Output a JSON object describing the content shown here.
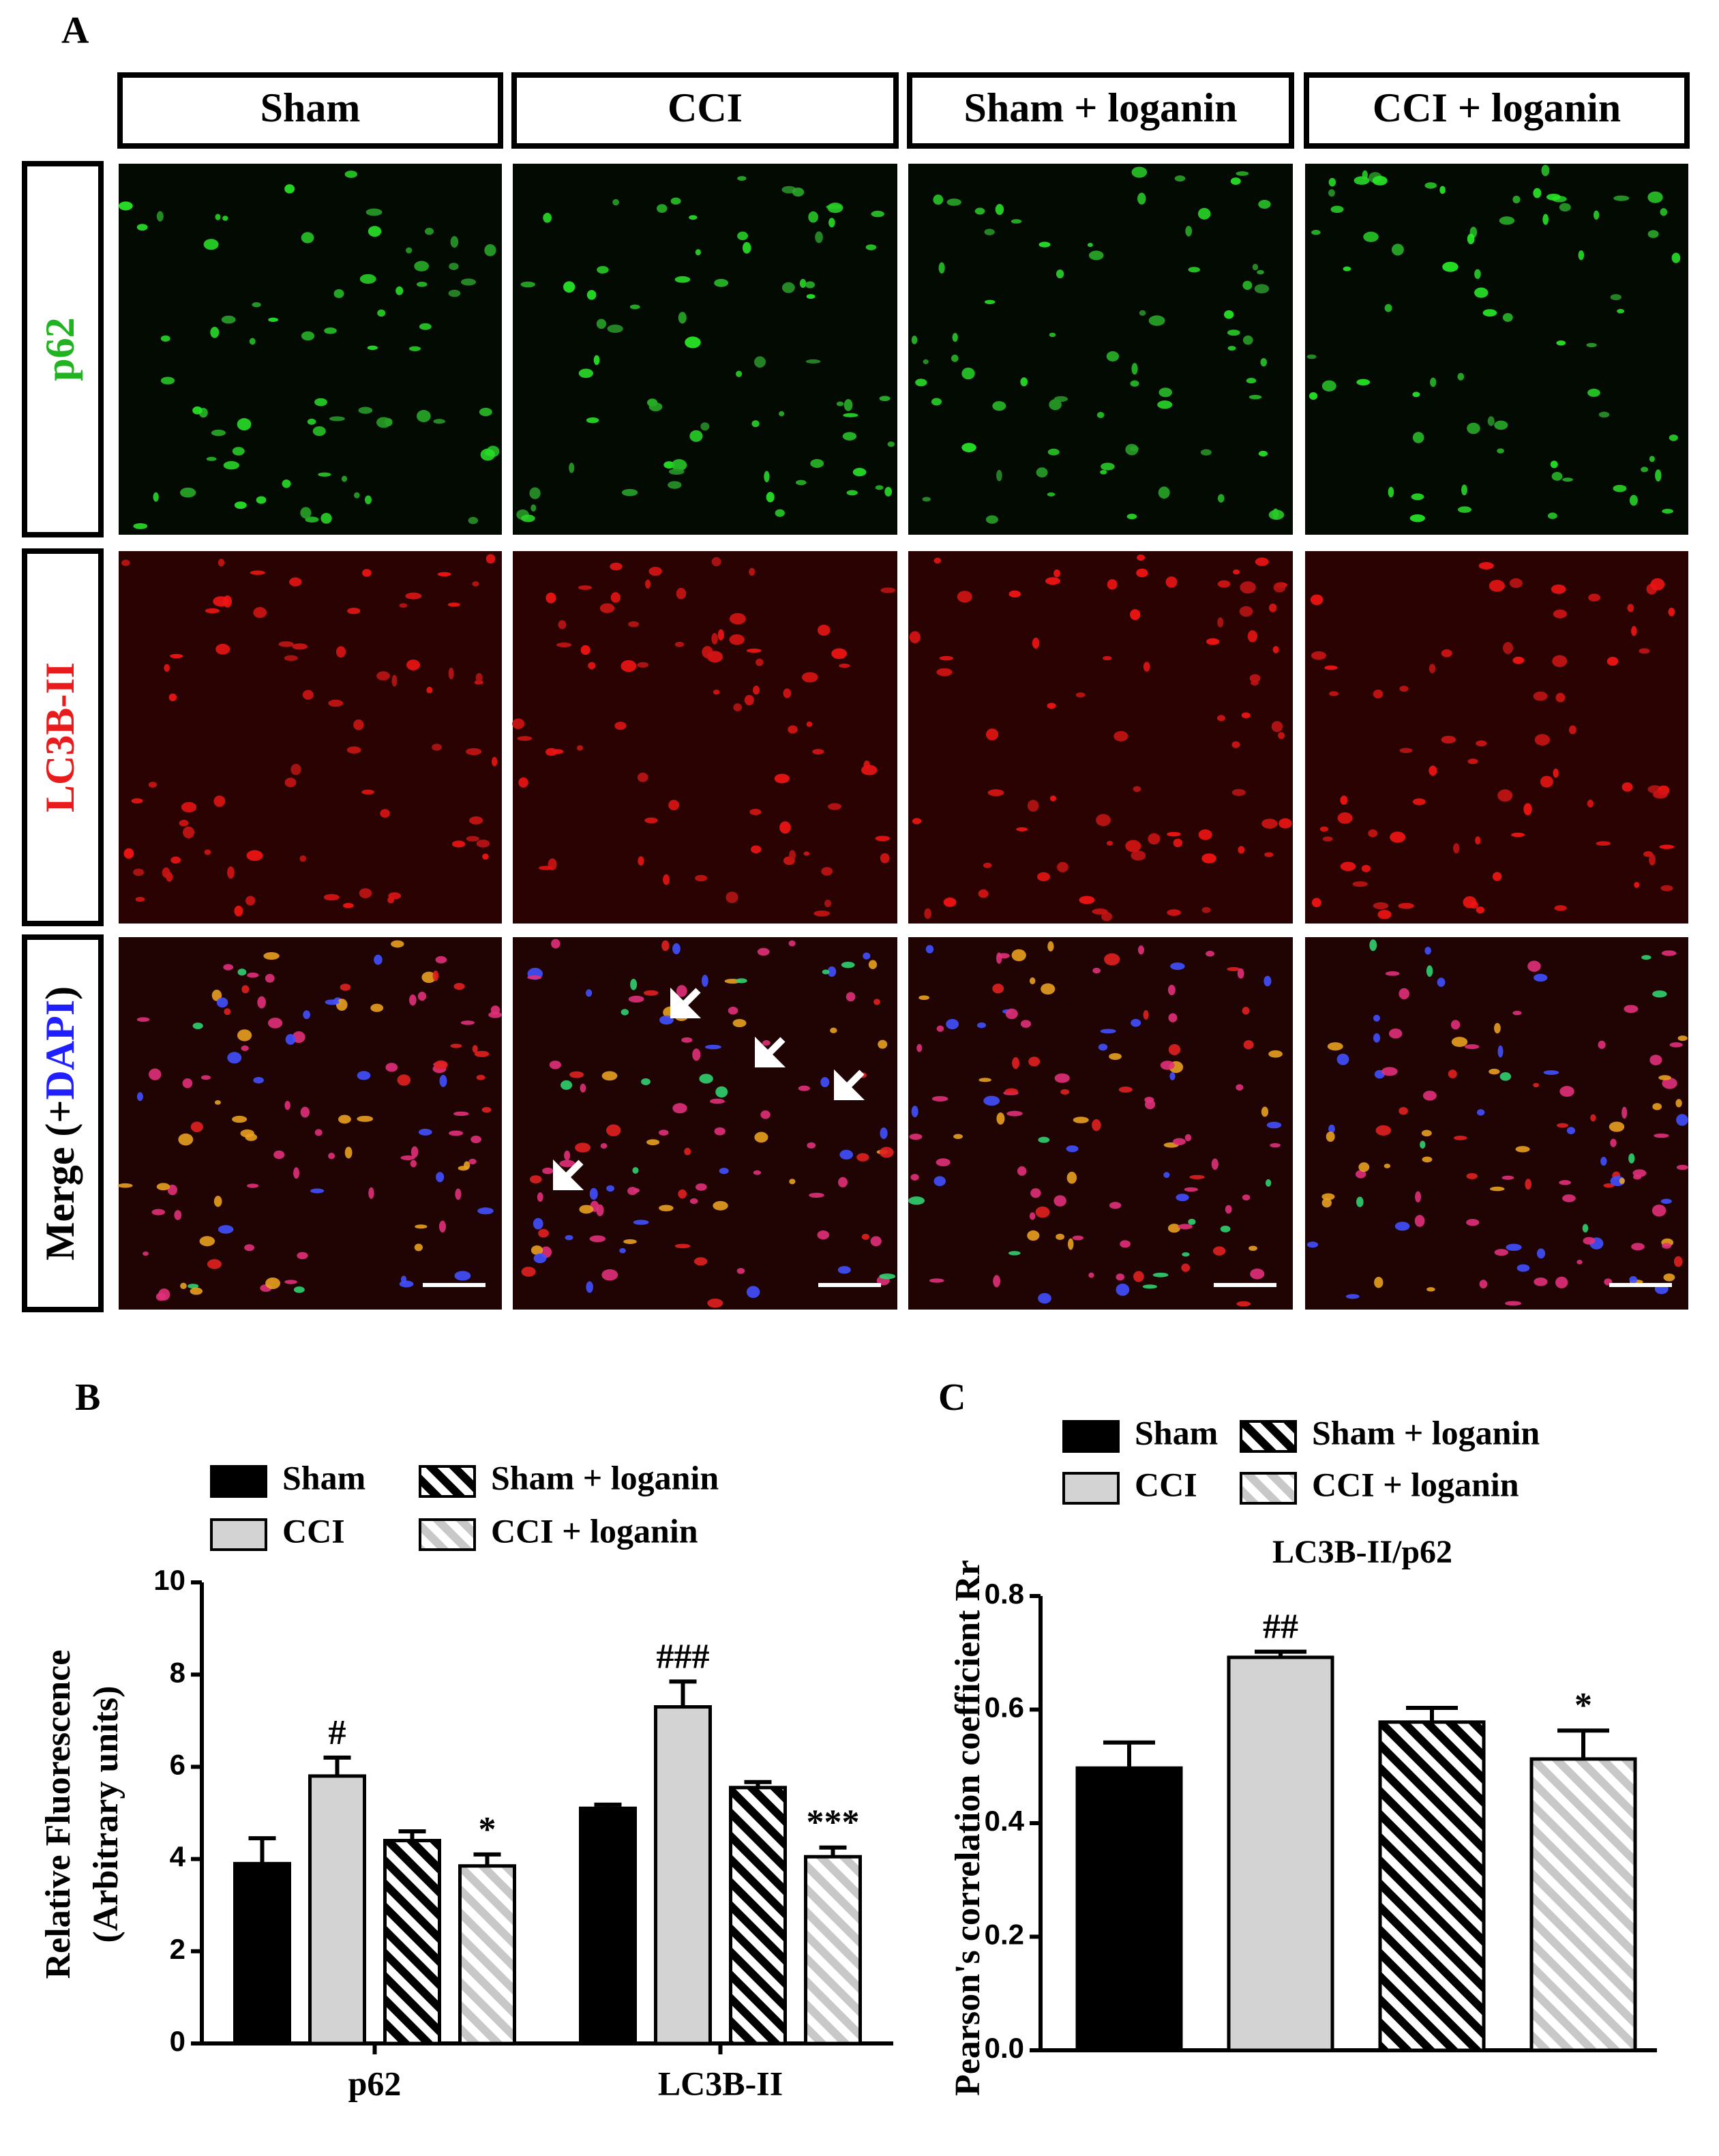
{
  "panel_a": {
    "label": "A",
    "columns": [
      "Sham",
      "CCI",
      "Sham + loganin",
      "CCI + loganin"
    ],
    "rows": [
      [
        "p62"
      ],
      [
        "LC3B-II"
      ],
      [
        "Merge (+",
        "DAPI",
        ")"
      ]
    ],
    "row_colors": [
      [
        "#22b322"
      ],
      [
        "#e81c1c"
      ],
      [
        "#000000",
        "#1f1fff",
        "#000000"
      ]
    ]
  },
  "chart_data": [
    {
      "type": "bar",
      "panel": "B",
      "ylabel": [
        "Relative Fluorescence",
        "(Arbitrary units)"
      ],
      "categories": [
        "p62",
        "LC3B-II"
      ],
      "series": [
        {
          "name": "Sham",
          "color": "#000000",
          "pattern": "solid",
          "values": [
            3.9,
            5.1
          ],
          "errors": [
            0.55,
            0.08
          ],
          "significance": [
            null,
            null
          ]
        },
        {
          "name": "CCI",
          "color": "#d3d3d3",
          "pattern": "solid",
          "values": [
            5.8,
            7.3
          ],
          "errors": [
            0.4,
            0.55
          ],
          "significance": [
            "#",
            "###"
          ]
        },
        {
          "name": "Sham + loganin",
          "color": "#000000",
          "pattern": "hatch",
          "values": [
            4.4,
            5.55
          ],
          "errors": [
            0.2,
            0.12
          ],
          "significance": [
            null,
            null
          ]
        },
        {
          "name": "CCI + loganin",
          "color": "#c8c8c8",
          "pattern": "hatch",
          "values": [
            3.85,
            4.05
          ],
          "errors": [
            0.25,
            0.2
          ],
          "significance": [
            "*",
            "***"
          ]
        }
      ],
      "ylim": [
        0,
        10
      ],
      "yticks": [
        0,
        2,
        4,
        6,
        8,
        10
      ]
    },
    {
      "type": "bar",
      "panel": "C",
      "title": "LC3B-II/p62",
      "ylabel": [
        "Pearson's correlation coefficient Rr"
      ],
      "series": [
        {
          "name": "Sham",
          "color": "#000000",
          "pattern": "solid",
          "values": [
            0.497
          ],
          "errors": [
            0.045
          ],
          "significance": [
            null
          ]
        },
        {
          "name": "CCI",
          "color": "#d3d3d3",
          "pattern": "solid",
          "values": [
            0.692
          ],
          "errors": [
            0.01
          ],
          "significance": [
            "##"
          ]
        },
        {
          "name": "Sham + loganin",
          "color": "#000000",
          "pattern": "hatch",
          "values": [
            0.578
          ],
          "errors": [
            0.025
          ],
          "significance": [
            null
          ]
        },
        {
          "name": "CCI + loganin",
          "color": "#c8c8c8",
          "pattern": "hatch",
          "values": [
            0.513
          ],
          "errors": [
            0.05
          ],
          "significance": [
            "*"
          ]
        }
      ],
      "ylim": [
        0,
        0.8
      ],
      "yticks": [
        {
          "value": 0,
          "label": "0.0"
        },
        0.2,
        0.4,
        0.6,
        0.8
      ]
    }
  ]
}
